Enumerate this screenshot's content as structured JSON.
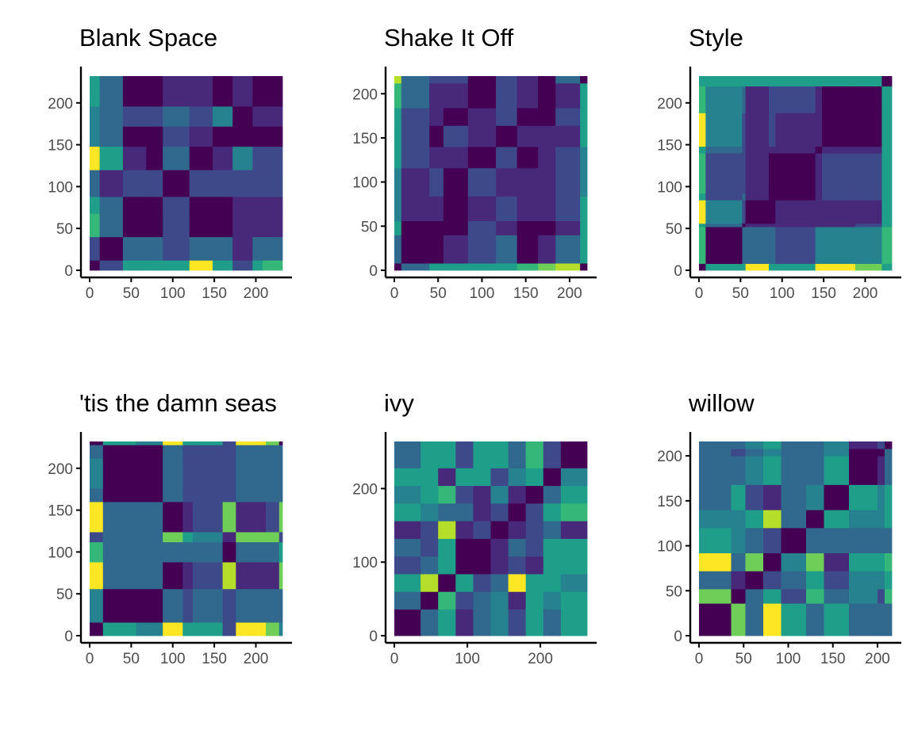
{
  "colors": {
    "viridis": [
      "#440154",
      "#482878",
      "#3e4989",
      "#31688e",
      "#26828e",
      "#1f9e89",
      "#35b779",
      "#6ece58",
      "#b5de2b",
      "#fde725"
    ],
    "axis": "#000000",
    "tick_label": "#4d4d4d"
  },
  "chart_data": [
    {
      "type": "heatmap",
      "title": "Blank Space",
      "xlim": [
        0,
        232
      ],
      "ylim": [
        0,
        232
      ],
      "x_ticks": [
        0,
        50,
        100,
        150,
        200
      ],
      "y_ticks": [
        0,
        50,
        100,
        150,
        200
      ],
      "boundaries": [
        0,
        12,
        40,
        68,
        88,
        120,
        148,
        172,
        196,
        208,
        232
      ],
      "matrix": [
        [
          0.0,
          0.2,
          0.5,
          0.6,
          0.6,
          0.95,
          0.5,
          0.2,
          0.6,
          0.65
        ],
        [
          0.2,
          0.0,
          0.3,
          0.3,
          0.2,
          0.35,
          0.3,
          0.1,
          0.3,
          0.3
        ],
        [
          0.7,
          0.3,
          0.0,
          0.0,
          0.2,
          0.0,
          0.0,
          0.1,
          0.1,
          0.1
        ],
        [
          0.55,
          0.3,
          0.0,
          0.0,
          0.2,
          0.0,
          0.0,
          0.1,
          0.1,
          0.1
        ],
        [
          0.3,
          0.1,
          0.2,
          0.2,
          0.0,
          0.2,
          0.2,
          0.2,
          0.2,
          0.2
        ],
        [
          0.95,
          0.6,
          0.1,
          0.0,
          0.3,
          0.0,
          0.1,
          0.45,
          0.2,
          0.2
        ],
        [
          0.4,
          0.35,
          0.0,
          0.0,
          0.2,
          0.1,
          0.0,
          0.0,
          0.0,
          0.0
        ],
        [
          0.4,
          0.3,
          0.2,
          0.2,
          0.3,
          0.2,
          0.45,
          0.0,
          0.1,
          0.15
        ],
        [
          0.6,
          0.35,
          0.0,
          0.0,
          0.1,
          0.1,
          0.0,
          0.1,
          0.0,
          0.05
        ],
        [
          0.6,
          0.35,
          0.0,
          0.0,
          0.1,
          0.1,
          0.0,
          0.1,
          0.05,
          0.0
        ]
      ]
    },
    {
      "type": "heatmap",
      "title": "Shake It Off",
      "xlim": [
        0,
        220
      ],
      "ylim": [
        0,
        220
      ],
      "x_ticks": [
        0,
        50,
        100,
        150,
        200
      ],
      "y_ticks": [
        0,
        50,
        100,
        150,
        200
      ],
      "boundaries": [
        0,
        8,
        40,
        56,
        84,
        116,
        140,
        164,
        184,
        212,
        220
      ],
      "matrix": [
        [
          0.0,
          0.3,
          0.5,
          0.5,
          0.6,
          0.6,
          0.7,
          0.75,
          0.9,
          0.0
        ],
        [
          0.3,
          0.0,
          0.0,
          0.1,
          0.2,
          0.3,
          0.0,
          0.1,
          0.3,
          0.5
        ],
        [
          0.5,
          0.05,
          0.0,
          0.05,
          0.2,
          0.1,
          0.05,
          0.05,
          0.1,
          0.6
        ],
        [
          0.4,
          0.1,
          0.1,
          0.0,
          0.1,
          0.2,
          0.1,
          0.15,
          0.2,
          0.5
        ],
        [
          0.45,
          0.1,
          0.2,
          0.0,
          0.2,
          0.1,
          0.1,
          0.15,
          0.2,
          0.45
        ],
        [
          0.6,
          0.2,
          0.1,
          0.1,
          0.0,
          0.2,
          0.05,
          0.1,
          0.2,
          0.45
        ],
        [
          0.5,
          0.2,
          0.0,
          0.2,
          0.1,
          0.0,
          0.15,
          0.1,
          0.15,
          0.5
        ],
        [
          0.55,
          0.2,
          0.1,
          0.0,
          0.1,
          0.2,
          0.0,
          0.05,
          0.25,
          0.55
        ],
        [
          0.7,
          0.3,
          0.1,
          0.1,
          0.0,
          0.2,
          0.1,
          0.0,
          0.1,
          0.6
        ],
        [
          0.9,
          0.35,
          0.2,
          0.25,
          0.0,
          0.2,
          0.1,
          0.0,
          0.3,
          0.0
        ]
      ]
    },
    {
      "type": "heatmap",
      "title": "Style",
      "xlim": [
        0,
        232
      ],
      "ylim": [
        0,
        232
      ],
      "x_ticks": [
        0,
        50,
        100,
        150,
        200
      ],
      "y_ticks": [
        0,
        50,
        100,
        150,
        200
      ],
      "boundaries": [
        0,
        8,
        52,
        56,
        84,
        92,
        140,
        148,
        188,
        220,
        232
      ],
      "matrix": [
        [
          0.0,
          0.55,
          0.55,
          0.95,
          0.55,
          0.55,
          0.95,
          0.95,
          0.75,
          0.6
        ],
        [
          0.7,
          0.0,
          0.3,
          0.3,
          0.3,
          0.2,
          0.4,
          0.4,
          0.4,
          0.7
        ],
        [
          0.6,
          0.3,
          0.0,
          0.1,
          0.1,
          0.1,
          0.1,
          0.1,
          0.2,
          0.6
        ],
        [
          0.95,
          0.4,
          0.2,
          0.0,
          0.0,
          0.1,
          0.1,
          0.1,
          0.1,
          0.6
        ],
        [
          0.6,
          0.2,
          0.3,
          0.1,
          0.0,
          0.0,
          0.1,
          0.2,
          0.2,
          0.55
        ],
        [
          0.7,
          0.2,
          0.2,
          0.1,
          0.0,
          0.0,
          0.1,
          0.2,
          0.2,
          0.55
        ],
        [
          0.6,
          0.3,
          0.2,
          0.1,
          0.1,
          0.1,
          0.05,
          0.1,
          0.1,
          0.55
        ],
        [
          0.95,
          0.4,
          0.2,
          0.1,
          0.2,
          0.1,
          0.1,
          0.0,
          0.0,
          0.55
        ],
        [
          0.7,
          0.4,
          0.3,
          0.1,
          0.2,
          0.2,
          0.1,
          0.0,
          0.0,
          0.5
        ],
        [
          0.6,
          0.6,
          0.6,
          0.6,
          0.5,
          0.5,
          0.5,
          0.5,
          0.5,
          0.0
        ]
      ]
    },
    {
      "type": "heatmap",
      "title": "'tis the damn seas",
      "xlim": [
        0,
        232
      ],
      "ylim": [
        0,
        232
      ],
      "x_ticks": [
        0,
        50,
        100,
        150,
        200
      ],
      "y_ticks": [
        0,
        50,
        100,
        150,
        200
      ],
      "boundaries": [
        0,
        16,
        56,
        88,
        112,
        124,
        160,
        176,
        212,
        228,
        232
      ],
      "matrix": [
        [
          0.0,
          0.5,
          0.4,
          0.95,
          0.6,
          0.5,
          0.2,
          0.95,
          0.8,
          0.4
        ],
        [
          0.4,
          0.0,
          0.0,
          0.3,
          0.2,
          0.3,
          0.2,
          0.3,
          0.3,
          0.3
        ],
        [
          0.95,
          0.3,
          0.3,
          0.0,
          0.1,
          0.2,
          0.85,
          0.1,
          0.15,
          0.8
        ],
        [
          0.7,
          0.3,
          0.3,
          0.3,
          0.3,
          0.3,
          0.0,
          0.3,
          0.3,
          0.6
        ],
        [
          0.2,
          0.3,
          0.3,
          0.8,
          0.6,
          0.4,
          0.1,
          0.75,
          0.8,
          0.2
        ],
        [
          0.95,
          0.3,
          0.3,
          0.05,
          0.1,
          0.2,
          0.8,
          0.1,
          0.2,
          0.8
        ],
        [
          0.3,
          0.05,
          0.05,
          0.3,
          0.2,
          0.2,
          0.2,
          0.3,
          0.3,
          0.3
        ],
        [
          0.4,
          0.05,
          0.05,
          0.3,
          0.2,
          0.2,
          0.2,
          0.3,
          0.3,
          0.3
        ],
        [
          0.3,
          0.0,
          0.0,
          0.3,
          0.2,
          0.2,
          0.2,
          0.3,
          0.3,
          0.3
        ],
        [
          0.0,
          0.5,
          0.4,
          0.95,
          0.6,
          0.5,
          0.2,
          0.95,
          0.8,
          0.0
        ]
      ]
    },
    {
      "type": "heatmap",
      "title": "ivy",
      "xlim": [
        0,
        264
      ],
      "ylim": [
        0,
        264
      ],
      "x_ticks": [
        0,
        100,
        200
      ],
      "y_ticks": [
        0,
        100,
        200
      ],
      "boundaries": [
        0,
        36,
        60,
        84,
        108,
        132,
        156,
        180,
        204,
        228,
        264
      ],
      "matrix": [
        [
          0.0,
          0.35,
          0.6,
          0.15,
          0.3,
          0.45,
          0.2,
          0.6,
          0.3,
          0.5
        ],
        [
          0.35,
          0.0,
          0.7,
          0.2,
          0.3,
          0.4,
          0.1,
          0.6,
          0.4,
          0.5
        ],
        [
          0.6,
          0.9,
          0.0,
          0.5,
          0.2,
          0.3,
          0.95,
          0.5,
          0.6,
          0.4
        ],
        [
          0.2,
          0.3,
          0.6,
          0.0,
          0.05,
          0.1,
          0.2,
          0.1,
          0.5,
          0.6
        ],
        [
          0.3,
          0.2,
          0.5,
          0.05,
          0.0,
          0.1,
          0.3,
          0.2,
          0.55,
          0.6
        ],
        [
          0.15,
          0.2,
          0.85,
          0.1,
          0.2,
          0.0,
          0.1,
          0.2,
          0.3,
          0.15
        ],
        [
          0.6,
          0.4,
          0.3,
          0.3,
          0.1,
          0.2,
          0.0,
          0.2,
          0.5,
          0.7
        ],
        [
          0.4,
          0.5,
          0.7,
          0.2,
          0.1,
          0.4,
          0.1,
          0.0,
          0.3,
          0.5
        ],
        [
          0.5,
          0.6,
          0.1,
          0.6,
          0.5,
          0.2,
          0.4,
          0.6,
          0.0,
          0.4
        ],
        [
          0.3,
          0.5,
          0.6,
          0.2,
          0.55,
          0.6,
          0.3,
          0.65,
          0.25,
          0.0
        ]
      ]
    },
    {
      "type": "heatmap",
      "title": "willow",
      "xlim": [
        0,
        216
      ],
      "ylim": [
        0,
        216
      ],
      "x_ticks": [
        0,
        50,
        100,
        150,
        200
      ],
      "y_ticks": [
        0,
        50,
        100,
        150,
        200
      ],
      "boundaries": [
        0,
        36,
        52,
        72,
        92,
        120,
        140,
        168,
        200,
        208,
        216
      ],
      "matrix": [
        [
          0.0,
          0.75,
          0.3,
          0.95,
          0.5,
          0.3,
          0.6,
          0.3,
          0.3,
          0.3
        ],
        [
          0.75,
          0.0,
          0.3,
          0.5,
          0.2,
          0.7,
          0.3,
          0.4,
          0.2,
          0.7
        ],
        [
          0.3,
          0.1,
          0.0,
          0.2,
          0.3,
          0.5,
          0.2,
          0.4,
          0.4,
          0.55
        ],
        [
          0.95,
          0.3,
          0.75,
          0.0,
          0.4,
          0.8,
          0.1,
          0.5,
          0.5,
          0.7
        ],
        [
          0.5,
          0.4,
          0.3,
          0.2,
          0.0,
          0.3,
          0.35,
          0.3,
          0.3,
          0.3
        ],
        [
          0.45,
          0.4,
          0.55,
          0.85,
          0.3,
          0.0,
          0.5,
          0.4,
          0.4,
          0.5
        ],
        [
          0.3,
          0.5,
          0.2,
          0.1,
          0.3,
          0.4,
          0.0,
          0.5,
          0.4,
          0.6
        ],
        [
          0.35,
          0.3,
          0.4,
          0.5,
          0.3,
          0.35,
          0.5,
          0.0,
          0.1,
          0.3
        ],
        [
          0.3,
          0.2,
          0.3,
          0.4,
          0.3,
          0.35,
          0.4,
          0.0,
          0.0,
          0.3
        ],
        [
          0.3,
          0.3,
          0.4,
          0.5,
          0.3,
          0.3,
          0.4,
          0.1,
          0.2,
          0.0
        ]
      ]
    }
  ]
}
